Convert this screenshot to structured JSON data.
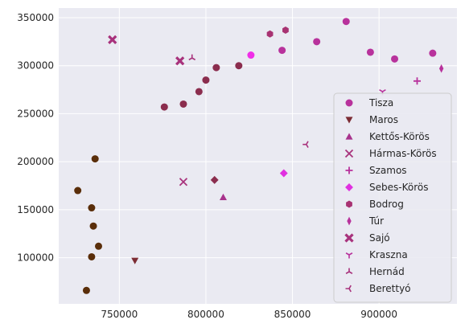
{
  "chart_data": {
    "type": "scatter",
    "title": "",
    "xlabel": "",
    "ylabel": "",
    "xlim": [
      715000,
      945000
    ],
    "ylim": [
      52000,
      360000
    ],
    "x_ticks": [
      750000,
      800000,
      850000,
      900000
    ],
    "x_tick_labels": [
      "750000",
      "800000",
      "850000",
      "900000"
    ],
    "y_ticks": [
      100000,
      150000,
      200000,
      250000,
      300000,
      350000
    ],
    "y_tick_labels": [
      "100000",
      "150000",
      "200000",
      "250000",
      "300000",
      "350000"
    ],
    "grid": true,
    "legend_position": "lower-right",
    "background": "#eaeaf2",
    "series": [
      {
        "name": "Tisza",
        "marker": "circle",
        "color": "#b8329c",
        "points": [
          [
            931000,
            313000
          ],
          [
            909000,
            307000
          ],
          [
            895000,
            314000
          ],
          [
            844000,
            316000
          ],
          [
            864000,
            325000
          ],
          [
            881000,
            346000
          ]
        ]
      },
      {
        "name": "Maros",
        "marker": "triangle-down",
        "color": "#7c2c34",
        "points": [
          [
            759000,
            97000
          ]
        ]
      },
      {
        "name": "Kettős-Körös",
        "marker": "triangle-up",
        "color": "#a8328c",
        "points": [
          [
            810000,
            163000
          ]
        ]
      },
      {
        "name": "Hármas-Körös",
        "marker": "x",
        "color": "#a8327c",
        "points": [
          [
            787000,
            179000
          ]
        ]
      },
      {
        "name": "Szamos",
        "marker": "plus",
        "color": "#b8329c",
        "points": [
          [
            922000,
            284000
          ]
        ]
      },
      {
        "name": "Sebes-Körös",
        "marker": "diamond",
        "color": "#e030e0",
        "points": [
          [
            845000,
            188000
          ]
        ]
      },
      {
        "name": "Bodrog",
        "marker": "hexagon",
        "color": "#a83272",
        "points": [
          [
            837000,
            333000
          ],
          [
            846000,
            337000
          ]
        ]
      },
      {
        "name": "Túr",
        "marker": "thin-diamond",
        "color": "#b8329c",
        "points": [
          [
            936000,
            297000
          ]
        ]
      },
      {
        "name": "Sajó",
        "marker": "x-filled",
        "color": "#a8327c",
        "points": [
          [
            746000,
            327000
          ],
          [
            785000,
            305000
          ]
        ]
      },
      {
        "name": "Kraszna",
        "marker": "tri-down",
        "color": "#b8329c",
        "points": [
          [
            902000,
            273000
          ]
        ]
      },
      {
        "name": "Hernád",
        "marker": "tri-up",
        "color": "#a8327c",
        "points": [
          [
            792000,
            308000
          ]
        ]
      },
      {
        "name": "Berettyó",
        "marker": "tri-left",
        "color": "#a8327c",
        "points": [
          [
            858000,
            218000
          ]
        ]
      },
      {
        "name": "",
        "marker": "circle",
        "color": "#8b2d4e",
        "points": [
          [
            776000,
            257000
          ],
          [
            787000,
            260000
          ],
          [
            796000,
            273000
          ],
          [
            800000,
            285000
          ],
          [
            806000,
            298000
          ],
          [
            819000,
            300000
          ]
        ]
      },
      {
        "name": "",
        "marker": "circle",
        "color": "#f02ee8",
        "points": [
          [
            826000,
            311000
          ]
        ]
      },
      {
        "name": "",
        "marker": "diamond",
        "color": "#8b2d4e",
        "points": [
          [
            805000,
            181000
          ]
        ]
      },
      {
        "name": "",
        "marker": "circle",
        "color": "#5a2e0a",
        "points": [
          [
            736000,
            203000
          ],
          [
            726000,
            170000
          ],
          [
            734000,
            152000
          ],
          [
            735000,
            133000
          ],
          [
            738000,
            112000
          ],
          [
            734000,
            101000
          ],
          [
            731000,
            66000
          ]
        ]
      }
    ]
  }
}
